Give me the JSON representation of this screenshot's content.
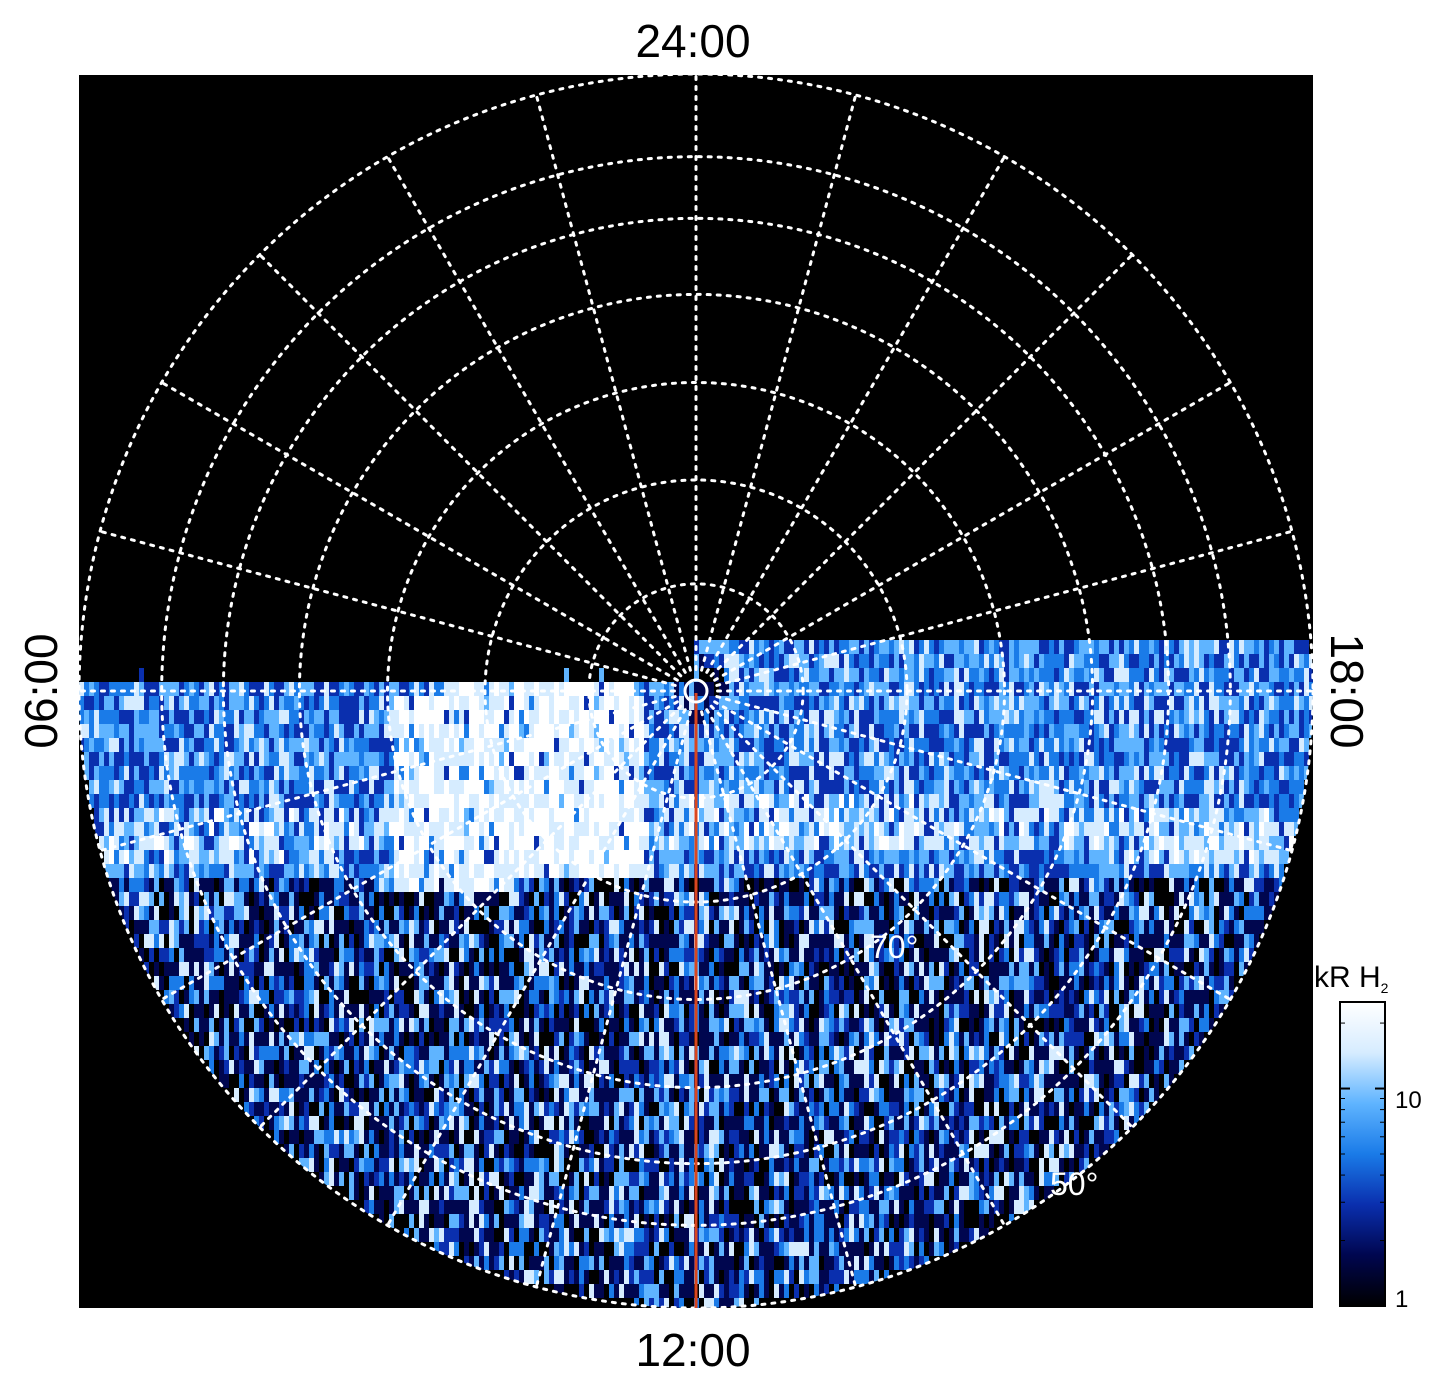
{
  "chart_data": {
    "type": "heatmap",
    "projection": "polar-orthographic",
    "title": "",
    "local_time_labels": {
      "top": "24:00",
      "bottom": "12:00",
      "left": "06:00",
      "right": "18:00"
    },
    "latitude_labels": [
      {
        "text": "70°",
        "latitude": 70
      },
      {
        "text": "50°",
        "latitude": 50
      }
    ],
    "latitude_grid_deg": [
      80,
      70,
      60,
      50,
      40,
      30
    ],
    "longitude_grid_spacing_hours": 1,
    "grid": true,
    "data_coverage": "half-disk (noon side, 06:00-12:00-18:00)",
    "highlight_meridian": {
      "local_time": "12:00",
      "color": "#d9461f"
    },
    "colorbar": {
      "label": "kR H",
      "label_subscript": "2",
      "scale": "log",
      "range": [
        1,
        25
      ],
      "tick_labels": [
        "1",
        "10"
      ],
      "tick_values": [
        1,
        10
      ],
      "colormap": [
        "#000000",
        "#00064f",
        "#0a2fae",
        "#1a7be8",
        "#5fb4ff",
        "#d6ecff",
        "#ffffff"
      ]
    },
    "features": [
      {
        "description": "bright emission band",
        "local_time_range": [
          "07:30",
          "11:00"
        ],
        "intensity": "saturated"
      },
      {
        "description": "auroral oval band",
        "local_time_range": [
          "06:00",
          "18:00"
        ],
        "intensity": "moderate"
      }
    ]
  }
}
